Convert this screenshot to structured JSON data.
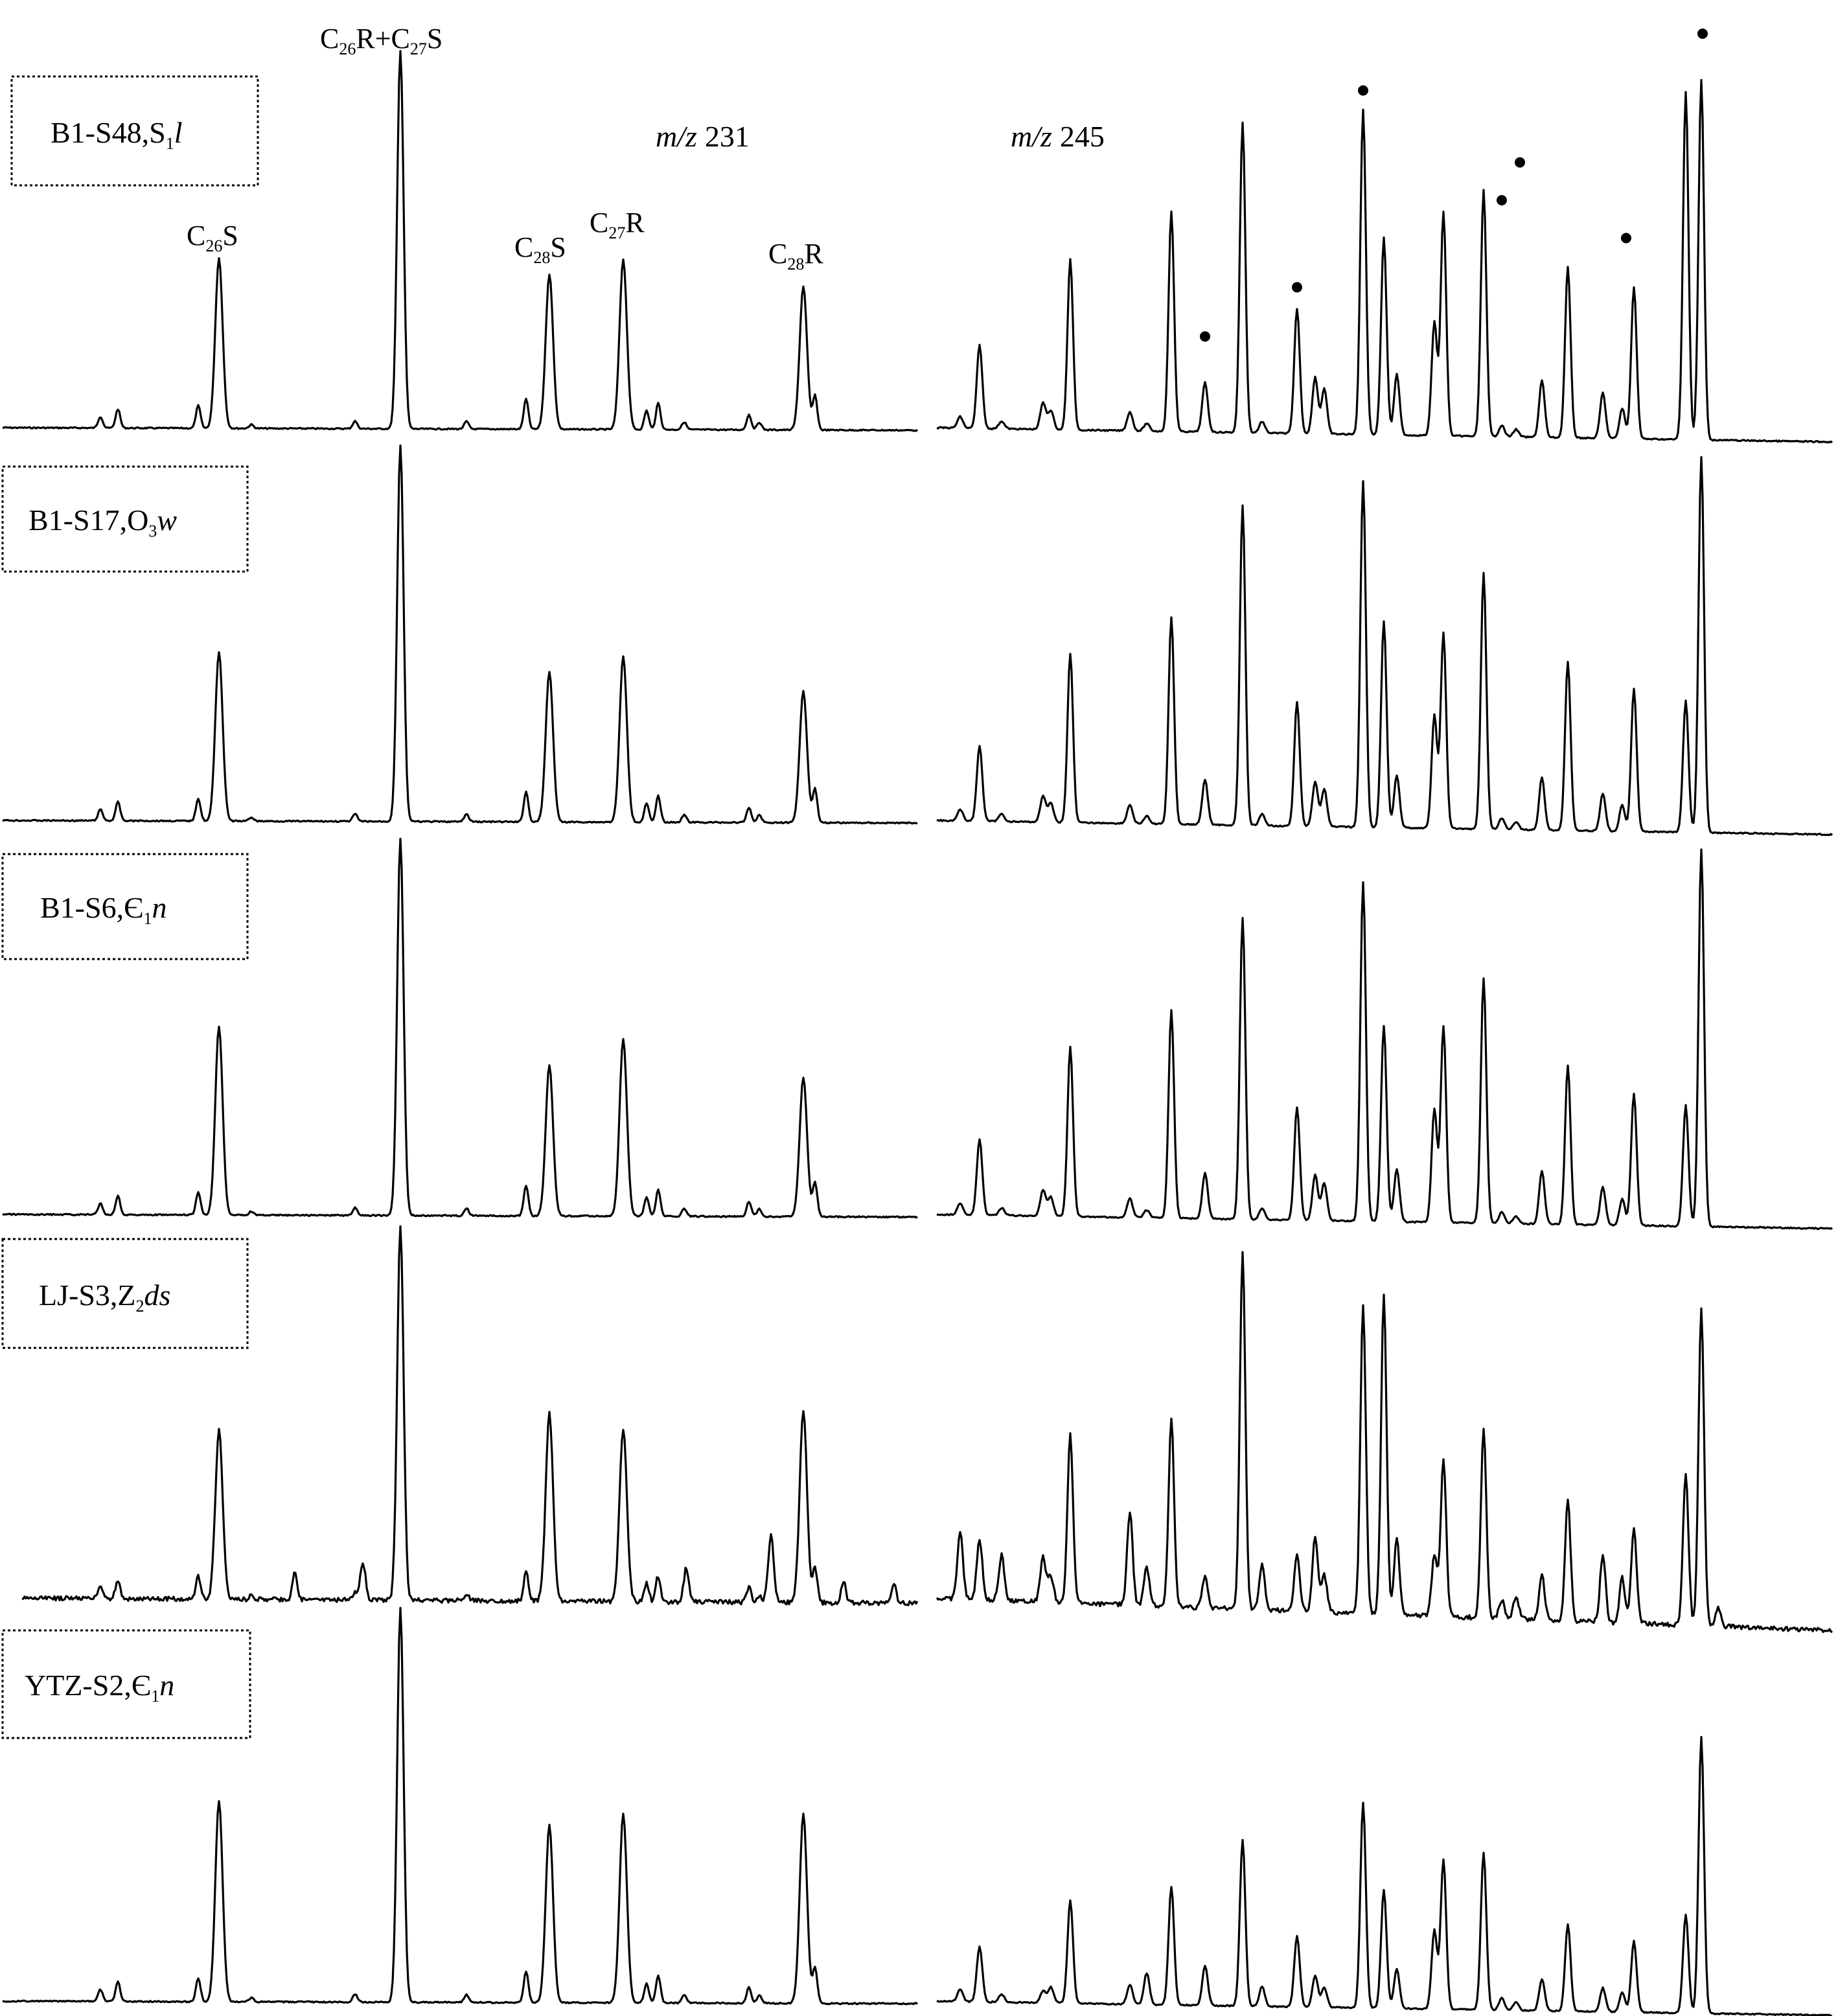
{
  "chart_data": {
    "type": "line",
    "channels": [
      {
        "label_prefix": "m/z",
        "label_value": "231"
      },
      {
        "label_prefix": "m/z",
        "label_value": "245"
      }
    ],
    "peak_labels": [
      {
        "base": "C",
        "sub": "26",
        "suffix": "S"
      },
      {
        "base": "C",
        "sub": "26",
        "suffix": "R+C",
        "sub2": "27",
        "suffix2": "S"
      },
      {
        "base": "C",
        "sub": "28",
        "suffix": "S"
      },
      {
        "base": "C",
        "sub": "27",
        "suffix": "R"
      },
      {
        "base": "C",
        "sub": "28",
        "suffix": "R"
      }
    ],
    "samples": [
      {
        "id": "B1-S48",
        "sep": ",",
        "strat": "S",
        "strat_sub": "1",
        "strat_ital": "l"
      },
      {
        "id": "B1-S17",
        "sep": ",",
        "strat": "O",
        "strat_sub": "3",
        "strat_ital": "w"
      },
      {
        "id": "B1-S6",
        "sep": ",",
        "strat": "Є",
        "strat_sub": "1",
        "strat_ital": "n"
      },
      {
        "id": "LJ-S3",
        "sep": ",",
        "strat": "Z",
        "strat_sub": "2",
        "strat_ital": "ds"
      },
      {
        "id": "YTZ-S2",
        "sep": ",",
        "strat": "Є",
        "strat_sub": "1",
        "strat_ital": "n"
      }
    ],
    "relative_peak_heights": {
      "m/z 231": {
        "peak_order": [
          "C26S",
          "C26R+C27S",
          "C28S",
          "C27R",
          "C28R"
        ],
        "B1-S48": [
          0.45,
          1.0,
          0.41,
          0.45,
          0.38
        ],
        "B1-S17": [
          0.45,
          1.0,
          0.4,
          0.44,
          0.35
        ],
        "B1-S6": [
          0.5,
          1.0,
          0.4,
          0.47,
          0.37
        ],
        "LJ-S3": [
          0.45,
          1.0,
          0.5,
          0.46,
          0.51
        ],
        "YTZ-S2": [
          0.51,
          1.0,
          0.45,
          0.48,
          0.48
        ]
      }
    },
    "marked_peaks_symbol": "•",
    "grid": false,
    "axes_shown": false
  }
}
